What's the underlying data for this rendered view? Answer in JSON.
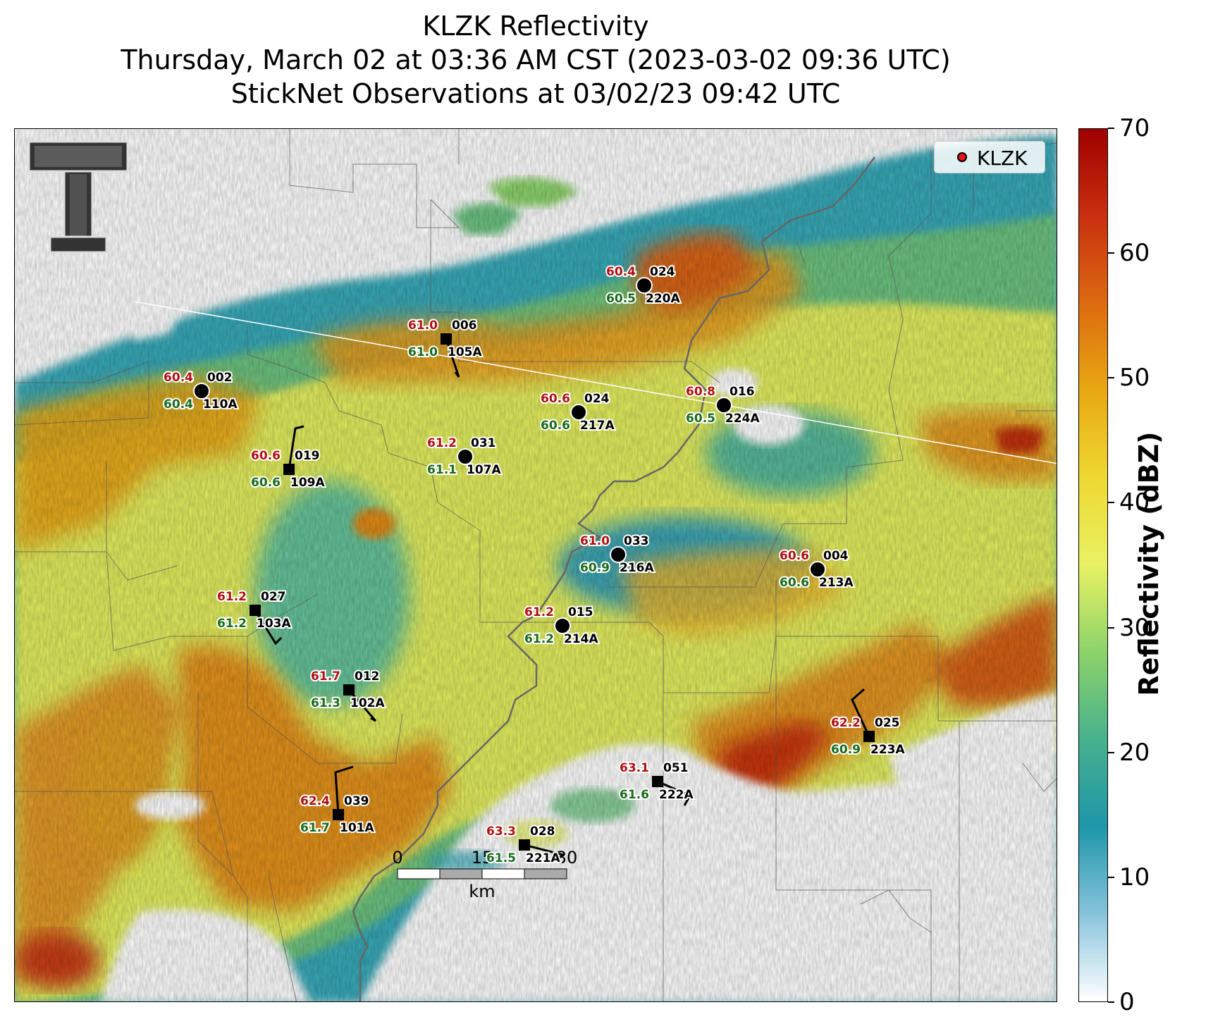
{
  "title_lines": [
    "KLZK Reflectivity",
    "Thursday, March 02 at 03:36 AM CST (2023-03-02 09:36 UTC)",
    "StickNet Observations at 03/02/23 09:42 UTC"
  ],
  "legend": {
    "label": "KLZK",
    "color": "#e8161b"
  },
  "colorbar": {
    "label": "Reflectivity (dBZ)",
    "min": 0,
    "max": 70,
    "ticks": [
      "0",
      "10",
      "20",
      "30",
      "40",
      "50",
      "60",
      "70"
    ],
    "colors": [
      "#ffffff",
      "#88c4dc",
      "#1e96aa",
      "#47b18e",
      "#8cd36a",
      "#e8f264",
      "#efd832",
      "#e8a812",
      "#dd6a10",
      "#c83010",
      "#a00000"
    ]
  },
  "scale_bar": {
    "ticks": [
      "0",
      "15",
      "30"
    ],
    "unit": "km"
  },
  "logo": {
    "icon": "texas-tech-double-t-logo"
  },
  "stations": [
    {
      "id": "002",
      "probe": "110A",
      "temp": "60.4",
      "dew": "60.4",
      "marker": "circle"
    },
    {
      "id": "006",
      "probe": "105A",
      "temp": "61.0",
      "dew": "61.0",
      "marker": "square"
    },
    {
      "id": "024",
      "probe": "220A",
      "temp": "60.4",
      "dew": "60.5",
      "marker": "circle"
    },
    {
      "id": "024",
      "probe": "217A",
      "temp": "60.6",
      "dew": "60.6",
      "marker": "circle"
    },
    {
      "id": "016",
      "probe": "224A",
      "temp": "60.8",
      "dew": "60.5",
      "marker": "circle"
    },
    {
      "id": "019",
      "probe": "109A",
      "temp": "60.6",
      "dew": "60.6",
      "marker": "square"
    },
    {
      "id": "031",
      "probe": "107A",
      "temp": "61.2",
      "dew": "61.1",
      "marker": "circle"
    },
    {
      "id": "033",
      "probe": "216A",
      "temp": "61.0",
      "dew": "60.9",
      "marker": "circle"
    },
    {
      "id": "004",
      "probe": "213A",
      "temp": "60.6",
      "dew": "60.6",
      "marker": "circle"
    },
    {
      "id": "027",
      "probe": "103A",
      "temp": "61.2",
      "dew": "61.2",
      "marker": "square"
    },
    {
      "id": "015",
      "probe": "214A",
      "temp": "61.2",
      "dew": "61.2",
      "marker": "circle"
    },
    {
      "id": "012",
      "probe": "102A",
      "temp": "61.7",
      "dew": "61.3",
      "marker": "square"
    },
    {
      "id": "025",
      "probe": "223A",
      "temp": "62.2",
      "dew": "60.9",
      "marker": "square"
    },
    {
      "id": "051",
      "probe": "222A",
      "temp": "63.1",
      "dew": "61.6",
      "marker": "square"
    },
    {
      "id": "039",
      "probe": "101A",
      "temp": "62.4",
      "dew": "61.7",
      "marker": "square"
    },
    {
      "id": "028",
      "probe": "221A",
      "temp": "63.3",
      "dew": "61.5",
      "marker": "square"
    }
  ]
}
